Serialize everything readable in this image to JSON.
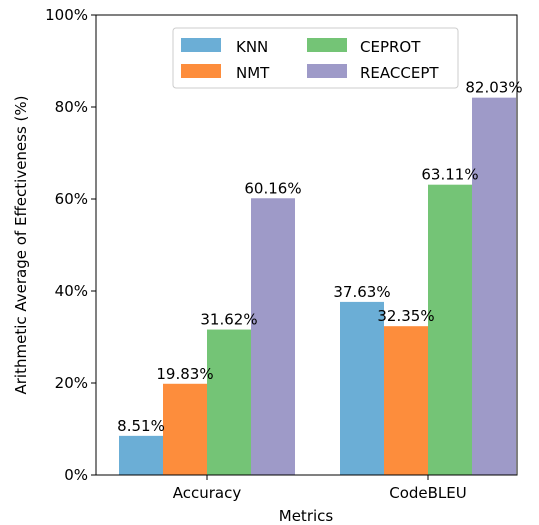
{
  "chart_data": {
    "type": "bar",
    "title": "",
    "xlabel": "Metrics",
    "ylabel": "Arithmetic Average of Effectiveness (%)",
    "categories": [
      "Accuracy",
      "CodeBLEU"
    ],
    "ylim": [
      0,
      100
    ],
    "yticks": [
      0,
      20,
      40,
      60,
      80,
      100
    ],
    "ytick_labels": [
      "0%",
      "20%",
      "40%",
      "60%",
      "80%",
      "100%"
    ],
    "grid": false,
    "legend_position": "top-center",
    "series": [
      {
        "name": "KNN",
        "color": "#6baed6",
        "values": [
          8.51,
          37.63
        ],
        "labels": [
          "8.51%",
          "37.63%"
        ]
      },
      {
        "name": "NMT",
        "color": "#fd8d3c",
        "values": [
          19.83,
          32.35
        ],
        "labels": [
          "19.83%",
          "32.35%"
        ]
      },
      {
        "name": "CEPROT",
        "color": "#74c476",
        "values": [
          31.62,
          63.11
        ],
        "labels": [
          "31.62%",
          "63.11%"
        ]
      },
      {
        "name": "REACCEPT",
        "color": "#9e9ac8",
        "values": [
          60.16,
          82.03
        ],
        "labels": [
          "60.16%",
          "82.03%"
        ]
      }
    ]
  }
}
